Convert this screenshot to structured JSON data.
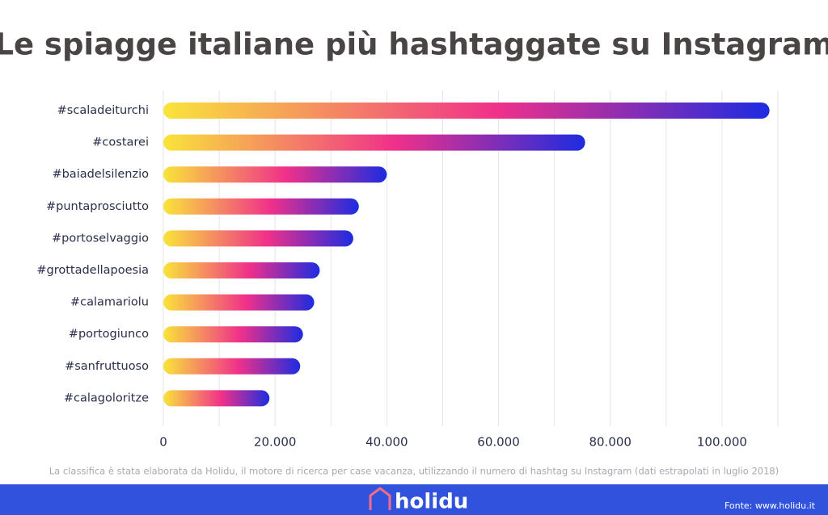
{
  "chart_data": {
    "type": "hbar",
    "title": "Le spiagge italiane più hashtaggate su Instagram",
    "categories": [
      "#scaladeiturchi",
      "#costarei",
      "#baiadelsilenzio",
      "#puntaprosciutto",
      "#portoselvaggio",
      "#grottadellapoesia",
      "#calamariolu",
      "#portogiunco",
      "#sanfruttuoso",
      "#calagoloritze"
    ],
    "values": [
      108500,
      75500,
      40000,
      35000,
      34000,
      28000,
      27000,
      25000,
      24500,
      19000
    ],
    "colors": [
      "#f9e43a",
      "#f0308a",
      "#1d2ce0"
    ],
    "xlim": [
      0,
      110000
    ],
    "xticks": [
      0,
      {
        "value": 20000,
        "label": "20.000"
      },
      {
        "value": 40000,
        "label": "40.000"
      },
      {
        "value": 60000,
        "label": "60.000"
      },
      {
        "value": 80000,
        "label": "80.000"
      },
      {
        "value": 100000,
        "label": "100.000"
      }
    ],
    "minor_xticks": [
      10000,
      30000,
      50000,
      70000,
      90000,
      110000
    ],
    "grid": true
  },
  "footer": {
    "note": "La classifica è stata elaborata da Holidu, il motore di ricerca per case vacanza, utilizzando il numero di hashtag su Instagram (dati estrapolati in luglio 2018)",
    "brand": "holidu",
    "source": "Fonte: www.holidu.it"
  }
}
